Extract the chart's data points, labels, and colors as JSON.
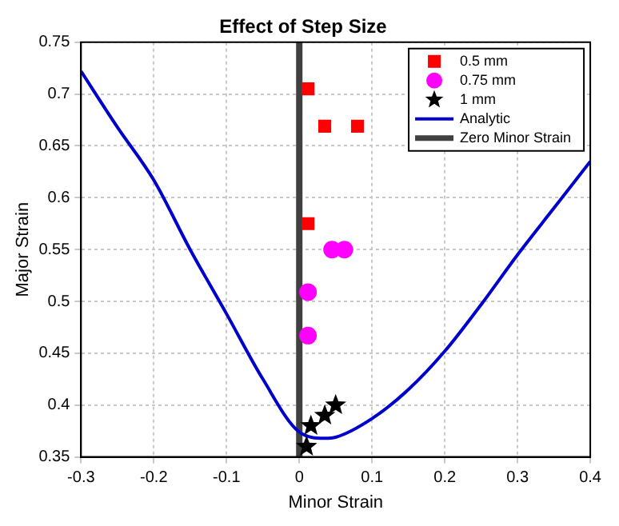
{
  "chart_data": {
    "type": "scatter",
    "title": "Effect of Step Size",
    "xlabel": "Minor Strain",
    "ylabel": "Major Strain",
    "xlim": [
      -0.3,
      0.4
    ],
    "xticks": [
      -0.3,
      -0.2,
      -0.1,
      0,
      0.1,
      0.2,
      0.3,
      0.4
    ],
    "ylim": [
      0.35,
      0.75
    ],
    "yticks": [
      0.35,
      0.4,
      0.45,
      0.5,
      0.55,
      0.6,
      0.65,
      0.7,
      0.75
    ],
    "grid": true,
    "legend": "top right",
    "series": [
      {
        "name": "0.5 mm",
        "marker": "square",
        "color": "#ff0000",
        "x": [
          0.012,
          0.035,
          0.08,
          0.012
        ],
        "values": [
          0.705,
          0.669,
          0.669,
          0.575
        ]
      },
      {
        "name": "0.75 mm",
        "marker": "circle",
        "color": "#ff00ff",
        "x": [
          0.012,
          0.045,
          0.062,
          0.012
        ],
        "values": [
          0.509,
          0.55,
          0.55,
          0.467
        ]
      },
      {
        "name": "1 mm",
        "marker": "star",
        "color": "#000000",
        "x": [
          0.01,
          0.016,
          0.035,
          0.05
        ],
        "values": [
          0.36,
          0.38,
          0.39,
          0.4
        ]
      },
      {
        "name": "Analytic",
        "type": "line",
        "marker": "none",
        "color": "#0000cc",
        "x": [
          -0.3,
          -0.25,
          -0.2,
          -0.15,
          -0.1,
          -0.05,
          0,
          0.035,
          0.05,
          0.1,
          0.15,
          0.2,
          0.25,
          0.3,
          0.35,
          0.4
        ],
        "values": [
          0.722,
          0.668,
          0.617,
          0.55,
          0.488,
          0.425,
          0.374,
          0.368,
          0.369,
          0.387,
          0.415,
          0.452,
          0.497,
          0.545,
          0.59,
          0.635
        ]
      },
      {
        "name": "Zero Minor Strain",
        "type": "line",
        "marker": "none",
        "color": "#404040",
        "x": [
          0,
          0
        ],
        "values": [
          0.35,
          0.75
        ]
      }
    ]
  }
}
